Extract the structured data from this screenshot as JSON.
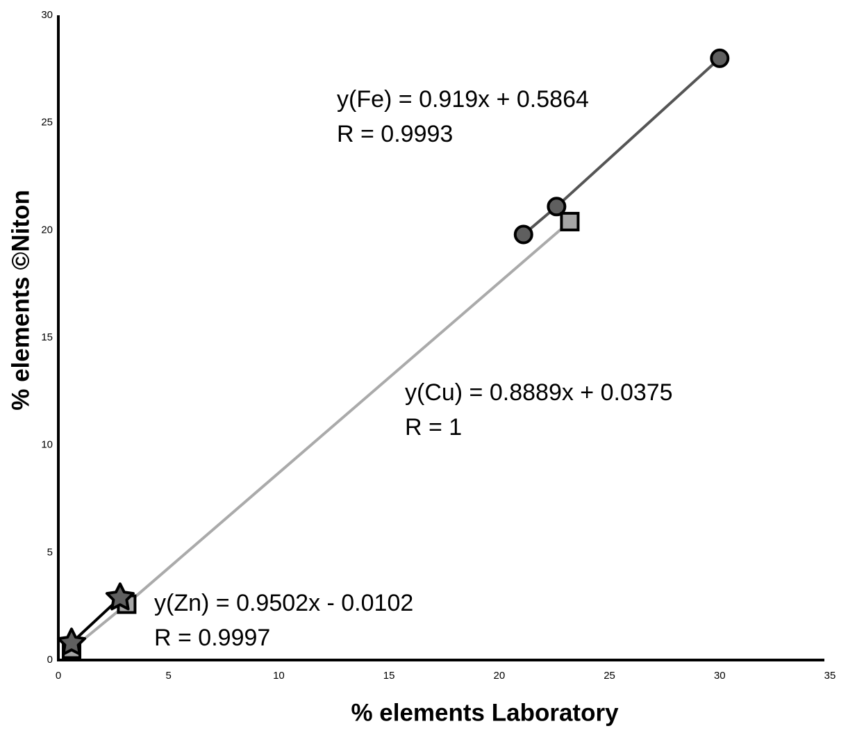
{
  "chart_data": {
    "type": "scatter",
    "x_label": "% elements Laboratory",
    "y_label": "% elements ©Niton",
    "xlim": [
      0,
      35
    ],
    "xticks": [
      0,
      5,
      10,
      15,
      20,
      25,
      30,
      35
    ],
    "ylim": [
      0,
      30
    ],
    "yticks": [
      0,
      5,
      10,
      15,
      20,
      25,
      30
    ],
    "grid": false,
    "series": [
      {
        "marker": "circle",
        "color": "#5f5f5f",
        "line_color": "#555555",
        "x": [
          21.1,
          22.6,
          30.0
        ],
        "values": [
          19.8,
          21.1,
          28.0
        ]
      },
      {
        "marker": "square",
        "color": "#a6a6a6",
        "line_color": "#aaaaaa",
        "x": [
          0.6,
          3.1,
          23.2
        ],
        "values": [
          0.5,
          2.6,
          20.4
        ]
      },
      {
        "marker": "star",
        "color": "#606060",
        "line_color": "#000000",
        "x": [
          0.6,
          2.8
        ],
        "values": [
          0.8,
          2.9
        ]
      }
    ],
    "annotations": [
      "y(Fe) = 0.919x + 0.5864",
      "R = 0.9993",
      "y(Cu) = 0.8889x + 0.0375",
      "R = 1",
      "y(Zn) = 0.9502x - 0.0102",
      "R = 0.9997"
    ]
  }
}
